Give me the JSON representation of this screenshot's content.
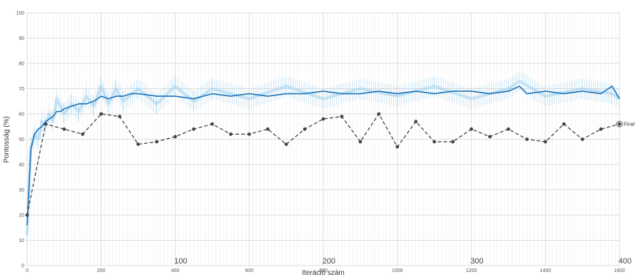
{
  "chart_data": {
    "type": "line",
    "title": "",
    "xlabel": "Iteráció szám",
    "ylabel": "Pontosság (%)",
    "xlim": [
      0,
      1600
    ],
    "ylim": [
      0,
      100
    ],
    "xticks": [
      "0",
      "200",
      "400",
      "600",
      "800",
      "1000",
      "1200",
      "1400",
      "1600"
    ],
    "yticks": [
      "0",
      "10",
      "20",
      "30",
      "40",
      "50",
      "60",
      "70",
      "80",
      "90",
      "100"
    ],
    "secondary_x_ticks": [
      {
        "label": "100",
        "x": 415
      },
      {
        "label": "200",
        "x": 815
      },
      {
        "label": "300",
        "x": 1215
      },
      {
        "label": "400",
        "x": 1615
      }
    ],
    "grid": true,
    "colors": {
      "raw": "#9fd1ee",
      "smoothed": "#1a72b8",
      "validation": "#333333",
      "marker": "#444444"
    },
    "series": [
      {
        "style": "raw-light-blue",
        "x": [
          0,
          10,
          20,
          30,
          40,
          50,
          60,
          70,
          80,
          100,
          120,
          140,
          160,
          180,
          200,
          220,
          240,
          260,
          300,
          350,
          400,
          450,
          500,
          600,
          700,
          800,
          900,
          1000,
          1100,
          1200,
          1300,
          1330,
          1400,
          1500,
          1580,
          1600
        ],
        "y": [
          12,
          47,
          52,
          50,
          57,
          55,
          60,
          57,
          66,
          60,
          64,
          61,
          67,
          63,
          71,
          64,
          70,
          65,
          70,
          64,
          71,
          65,
          70,
          66,
          71,
          66,
          70,
          67,
          71,
          66,
          70,
          73,
          67,
          70,
          68,
          66
        ]
      },
      {
        "style": "smoothed-blue",
        "x": [
          0,
          10,
          20,
          30,
          40,
          50,
          60,
          70,
          80,
          90,
          100,
          120,
          140,
          160,
          180,
          200,
          220,
          240,
          260,
          280,
          300,
          350,
          400,
          450,
          500,
          550,
          600,
          650,
          700,
          750,
          800,
          850,
          900,
          950,
          1000,
          1050,
          1100,
          1150,
          1200,
          1250,
          1300,
          1330,
          1350,
          1400,
          1450,
          1500,
          1550,
          1580,
          1600
        ],
        "y": [
          16,
          46,
          52,
          54,
          55,
          57,
          58,
          59,
          61,
          61,
          62,
          63,
          64,
          64,
          65,
          67,
          66,
          67,
          67,
          68,
          68,
          67,
          67,
          66,
          68,
          67,
          68,
          67,
          68,
          68,
          69,
          68,
          68,
          69,
          68,
          69,
          68,
          69,
          69,
          68,
          69,
          71,
          68,
          69,
          68,
          69,
          68,
          71,
          66
        ]
      },
      {
        "style": "validation-dashed",
        "x": [
          0,
          50,
          100,
          150,
          200,
          250,
          300,
          350,
          400,
          450,
          500,
          550,
          600,
          650,
          700,
          750,
          800,
          850,
          900,
          950,
          1000,
          1050,
          1100,
          1150,
          1200,
          1250,
          1300,
          1350,
          1400,
          1450,
          1500,
          1550,
          1600
        ],
        "y": [
          20,
          56,
          54,
          52,
          60,
          59,
          48,
          49,
          51,
          54,
          56,
          52,
          52,
          54,
          48,
          54,
          58,
          59,
          49,
          60,
          47,
          57,
          49,
          49,
          54,
          51,
          54,
          50,
          49,
          56,
          50,
          54,
          56
        ]
      }
    ],
    "annotations": [
      {
        "text": "Final",
        "x": 1600,
        "y": 56
      }
    ]
  }
}
